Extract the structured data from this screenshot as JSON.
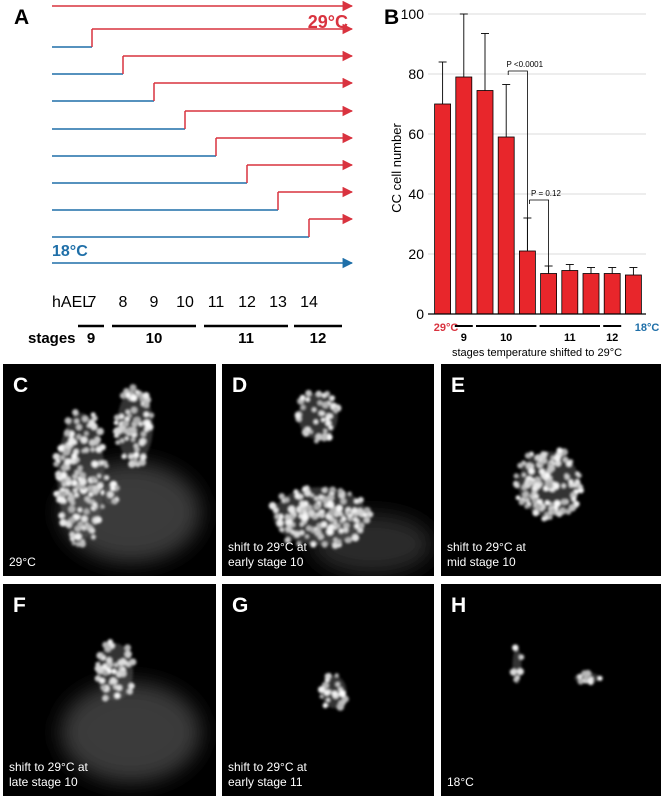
{
  "panel_a": {
    "letter": "A",
    "temp_high": "29°C",
    "temp_low": "18°C",
    "axis_label": "hAEL",
    "hours": [
      "7",
      "8",
      "9",
      "10",
      "11",
      "12",
      "13",
      "14"
    ],
    "stages_label": "stages",
    "stages": [
      "9",
      "10",
      "11",
      "12"
    ],
    "colors": {
      "high": "#d9333f",
      "low": "#1f6fa8"
    }
  },
  "chart_data": {
    "type": "bar",
    "title": "",
    "ylabel": "CC cell number",
    "xlabel": "stages temperature shifted to 29°C",
    "ylim": [
      0,
      100
    ],
    "yticks": [
      0,
      20,
      40,
      60,
      80,
      100
    ],
    "grid": true,
    "values": [
      70,
      79,
      74.5,
      59,
      21,
      13.5,
      14.5,
      13.5,
      13.5,
      13
    ],
    "errors": [
      14,
      21,
      19,
      17.5,
      11,
      2.5,
      2,
      2,
      2,
      2.5
    ],
    "end_labels": [
      "29°C",
      "18°C"
    ],
    "stage_labels": [
      "9",
      "10",
      "11",
      "12"
    ],
    "annotations": [
      {
        "text": "P <0.0001",
        "from": 3,
        "to": 4
      },
      {
        "text": "P = 0.12",
        "from": 4,
        "to": 5
      }
    ],
    "bar_color": "#e8262b",
    "letter": "B"
  },
  "micrographs": [
    {
      "letter": "C",
      "caption_lines": [
        "29°C"
      ]
    },
    {
      "letter": "D",
      "caption_lines": [
        "shift to 29°C at",
        "early stage 10"
      ]
    },
    {
      "letter": "E",
      "caption_lines": [
        "shift to 29°C at",
        "mid stage 10"
      ]
    },
    {
      "letter": "F",
      "caption_lines": [
        "shift to 29°C at",
        "late stage 10"
      ]
    },
    {
      "letter": "G",
      "caption_lines": [
        "shift to 29°C at",
        "early stage 11"
      ]
    },
    {
      "letter": "H",
      "caption_lines": [
        "18°C"
      ]
    }
  ]
}
